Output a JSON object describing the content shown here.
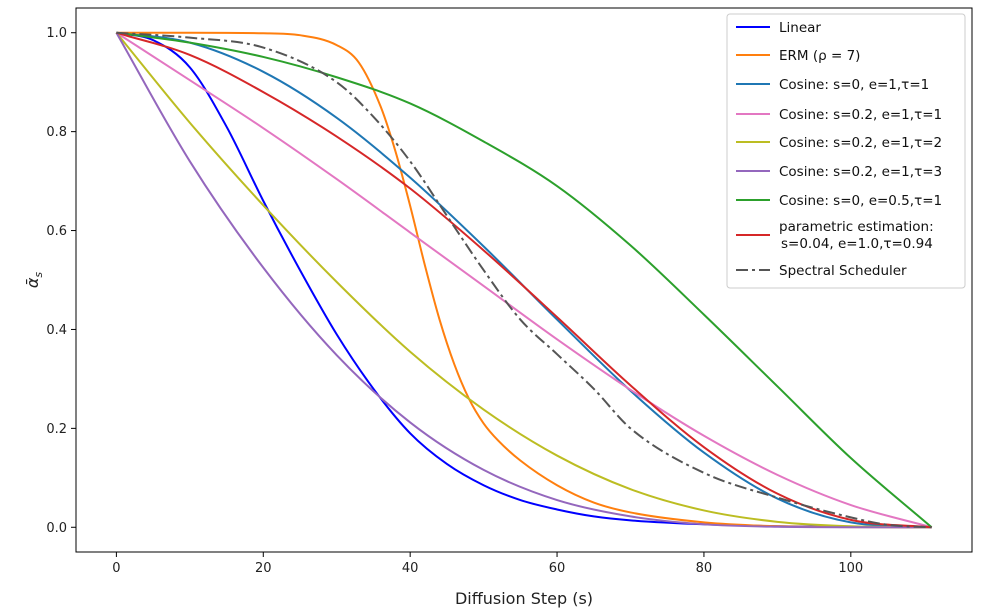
{
  "chart_data": {
    "type": "line",
    "title": "",
    "xlabel": "Diffusion Step (s)",
    "ylabel": "ᾱ",
    "ylabel_sub": "s",
    "xlim": [
      -5.5,
      116.5
    ],
    "ylim": [
      -0.05,
      1.05
    ],
    "x_ticks": [
      0,
      20,
      40,
      60,
      80,
      100
    ],
    "x_tick_labels": [
      "0",
      "20",
      "40",
      "60",
      "80",
      "100"
    ],
    "y_ticks": [
      0.0,
      0.2,
      0.4,
      0.6,
      0.8,
      1.0
    ],
    "y_tick_labels": [
      "0.0",
      "0.2",
      "0.4",
      "0.6",
      "0.8",
      "1.0"
    ],
    "grid": false,
    "legend_position": "top-right",
    "x_max": 111,
    "series": [
      {
        "name": "Linear",
        "color": "#0000ff",
        "dash": "solid",
        "x": [
          0,
          5,
          10,
          15,
          20,
          25,
          30,
          35,
          40,
          45,
          50,
          55,
          60,
          65,
          70,
          80,
          90,
          100,
          111
        ],
        "y": [
          1.0,
          0.985,
          0.93,
          0.81,
          0.66,
          0.52,
          0.39,
          0.28,
          0.19,
          0.128,
          0.085,
          0.055,
          0.036,
          0.022,
          0.014,
          0.006,
          0.002,
          0.0005,
          0.0
        ]
      },
      {
        "name": "ERM",
        "name_rho": "(ρ = 7)",
        "color": "#ff7f0e",
        "dash": "solid",
        "x": [
          0,
          10,
          20,
          25,
          30,
          33,
          36,
          38,
          40,
          42,
          44,
          46,
          48,
          50,
          52,
          55,
          60,
          65,
          70,
          80,
          90,
          100,
          111
        ],
        "y": [
          1.0,
          1.0,
          0.999,
          0.995,
          0.975,
          0.94,
          0.85,
          0.76,
          0.65,
          0.53,
          0.42,
          0.33,
          0.26,
          0.21,
          0.175,
          0.135,
          0.085,
          0.05,
          0.03,
          0.01,
          0.002,
          0.0003,
          0.0
        ]
      },
      {
        "name": "Cosine: s=0, e=1,τ=1",
        "color": "#1f77b4",
        "dash": "solid",
        "x": [
          0,
          10,
          20,
          30,
          40,
          50,
          60,
          70,
          80,
          90,
          100,
          111
        ],
        "y": [
          1.0,
          0.98,
          0.921,
          0.828,
          0.707,
          0.568,
          0.42,
          0.276,
          0.151,
          0.058,
          0.01,
          0.0
        ]
      },
      {
        "name": "Cosine: s=0.2, e=1,τ=1",
        "color": "#e377c2",
        "dash": "solid",
        "x": [
          0,
          10,
          20,
          30,
          40,
          50,
          60,
          70,
          80,
          90,
          100,
          111
        ],
        "y": [
          1.0,
          0.904,
          0.807,
          0.704,
          0.596,
          0.488,
          0.38,
          0.278,
          0.185,
          0.106,
          0.045,
          0.0
        ]
      },
      {
        "name": "Cosine: s=0.2, e=1,τ=2",
        "color": "#bcbd22",
        "dash": "solid",
        "x": [
          0,
          10,
          20,
          30,
          40,
          50,
          60,
          70,
          80,
          90,
          100,
          111
        ],
        "y": [
          1.0,
          0.818,
          0.651,
          0.496,
          0.355,
          0.238,
          0.145,
          0.077,
          0.034,
          0.011,
          0.002,
          0.0
        ]
      },
      {
        "name": "Cosine: s=0.2, e=1,τ=3",
        "color": "#9467bd",
        "dash": "solid",
        "x": [
          0,
          10,
          20,
          30,
          40,
          50,
          60,
          70,
          80,
          90,
          100,
          111
        ],
        "y": [
          1.0,
          0.74,
          0.525,
          0.348,
          0.212,
          0.116,
          0.055,
          0.022,
          0.006,
          0.001,
          0.0001,
          0.0
        ]
      },
      {
        "name": "Cosine: s=0, e=0.5,τ=1",
        "color": "#2ca02c",
        "dash": "solid",
        "x": [
          0,
          10,
          20,
          30,
          40,
          50,
          60,
          70,
          80,
          90,
          100,
          111
        ],
        "y": [
          1.0,
          0.98,
          0.951,
          0.91,
          0.857,
          0.78,
          0.69,
          0.57,
          0.43,
          0.285,
          0.14,
          0.0
        ]
      },
      {
        "name": "parametric estimation:",
        "name2": "s=0.04, e=1.0,τ=0.94",
        "color": "#d62728",
        "dash": "solid",
        "x": [
          0,
          10,
          20,
          30,
          40,
          50,
          60,
          70,
          80,
          90,
          100,
          111
        ],
        "y": [
          1.0,
          0.955,
          0.88,
          0.79,
          0.685,
          0.56,
          0.425,
          0.287,
          0.162,
          0.068,
          0.015,
          0.0
        ]
      },
      {
        "name": "Spectral Scheduler",
        "color": "#555555",
        "dash": "dashdot",
        "x": [
          0,
          10,
          20,
          30,
          35,
          40,
          45,
          50,
          55,
          60,
          65,
          70,
          80,
          90,
          100,
          105,
          111
        ],
        "y": [
          1.0,
          0.99,
          0.97,
          0.9,
          0.83,
          0.74,
          0.63,
          0.52,
          0.42,
          0.35,
          0.28,
          0.2,
          0.11,
          0.06,
          0.02,
          0.005,
          0.0
        ]
      }
    ]
  }
}
